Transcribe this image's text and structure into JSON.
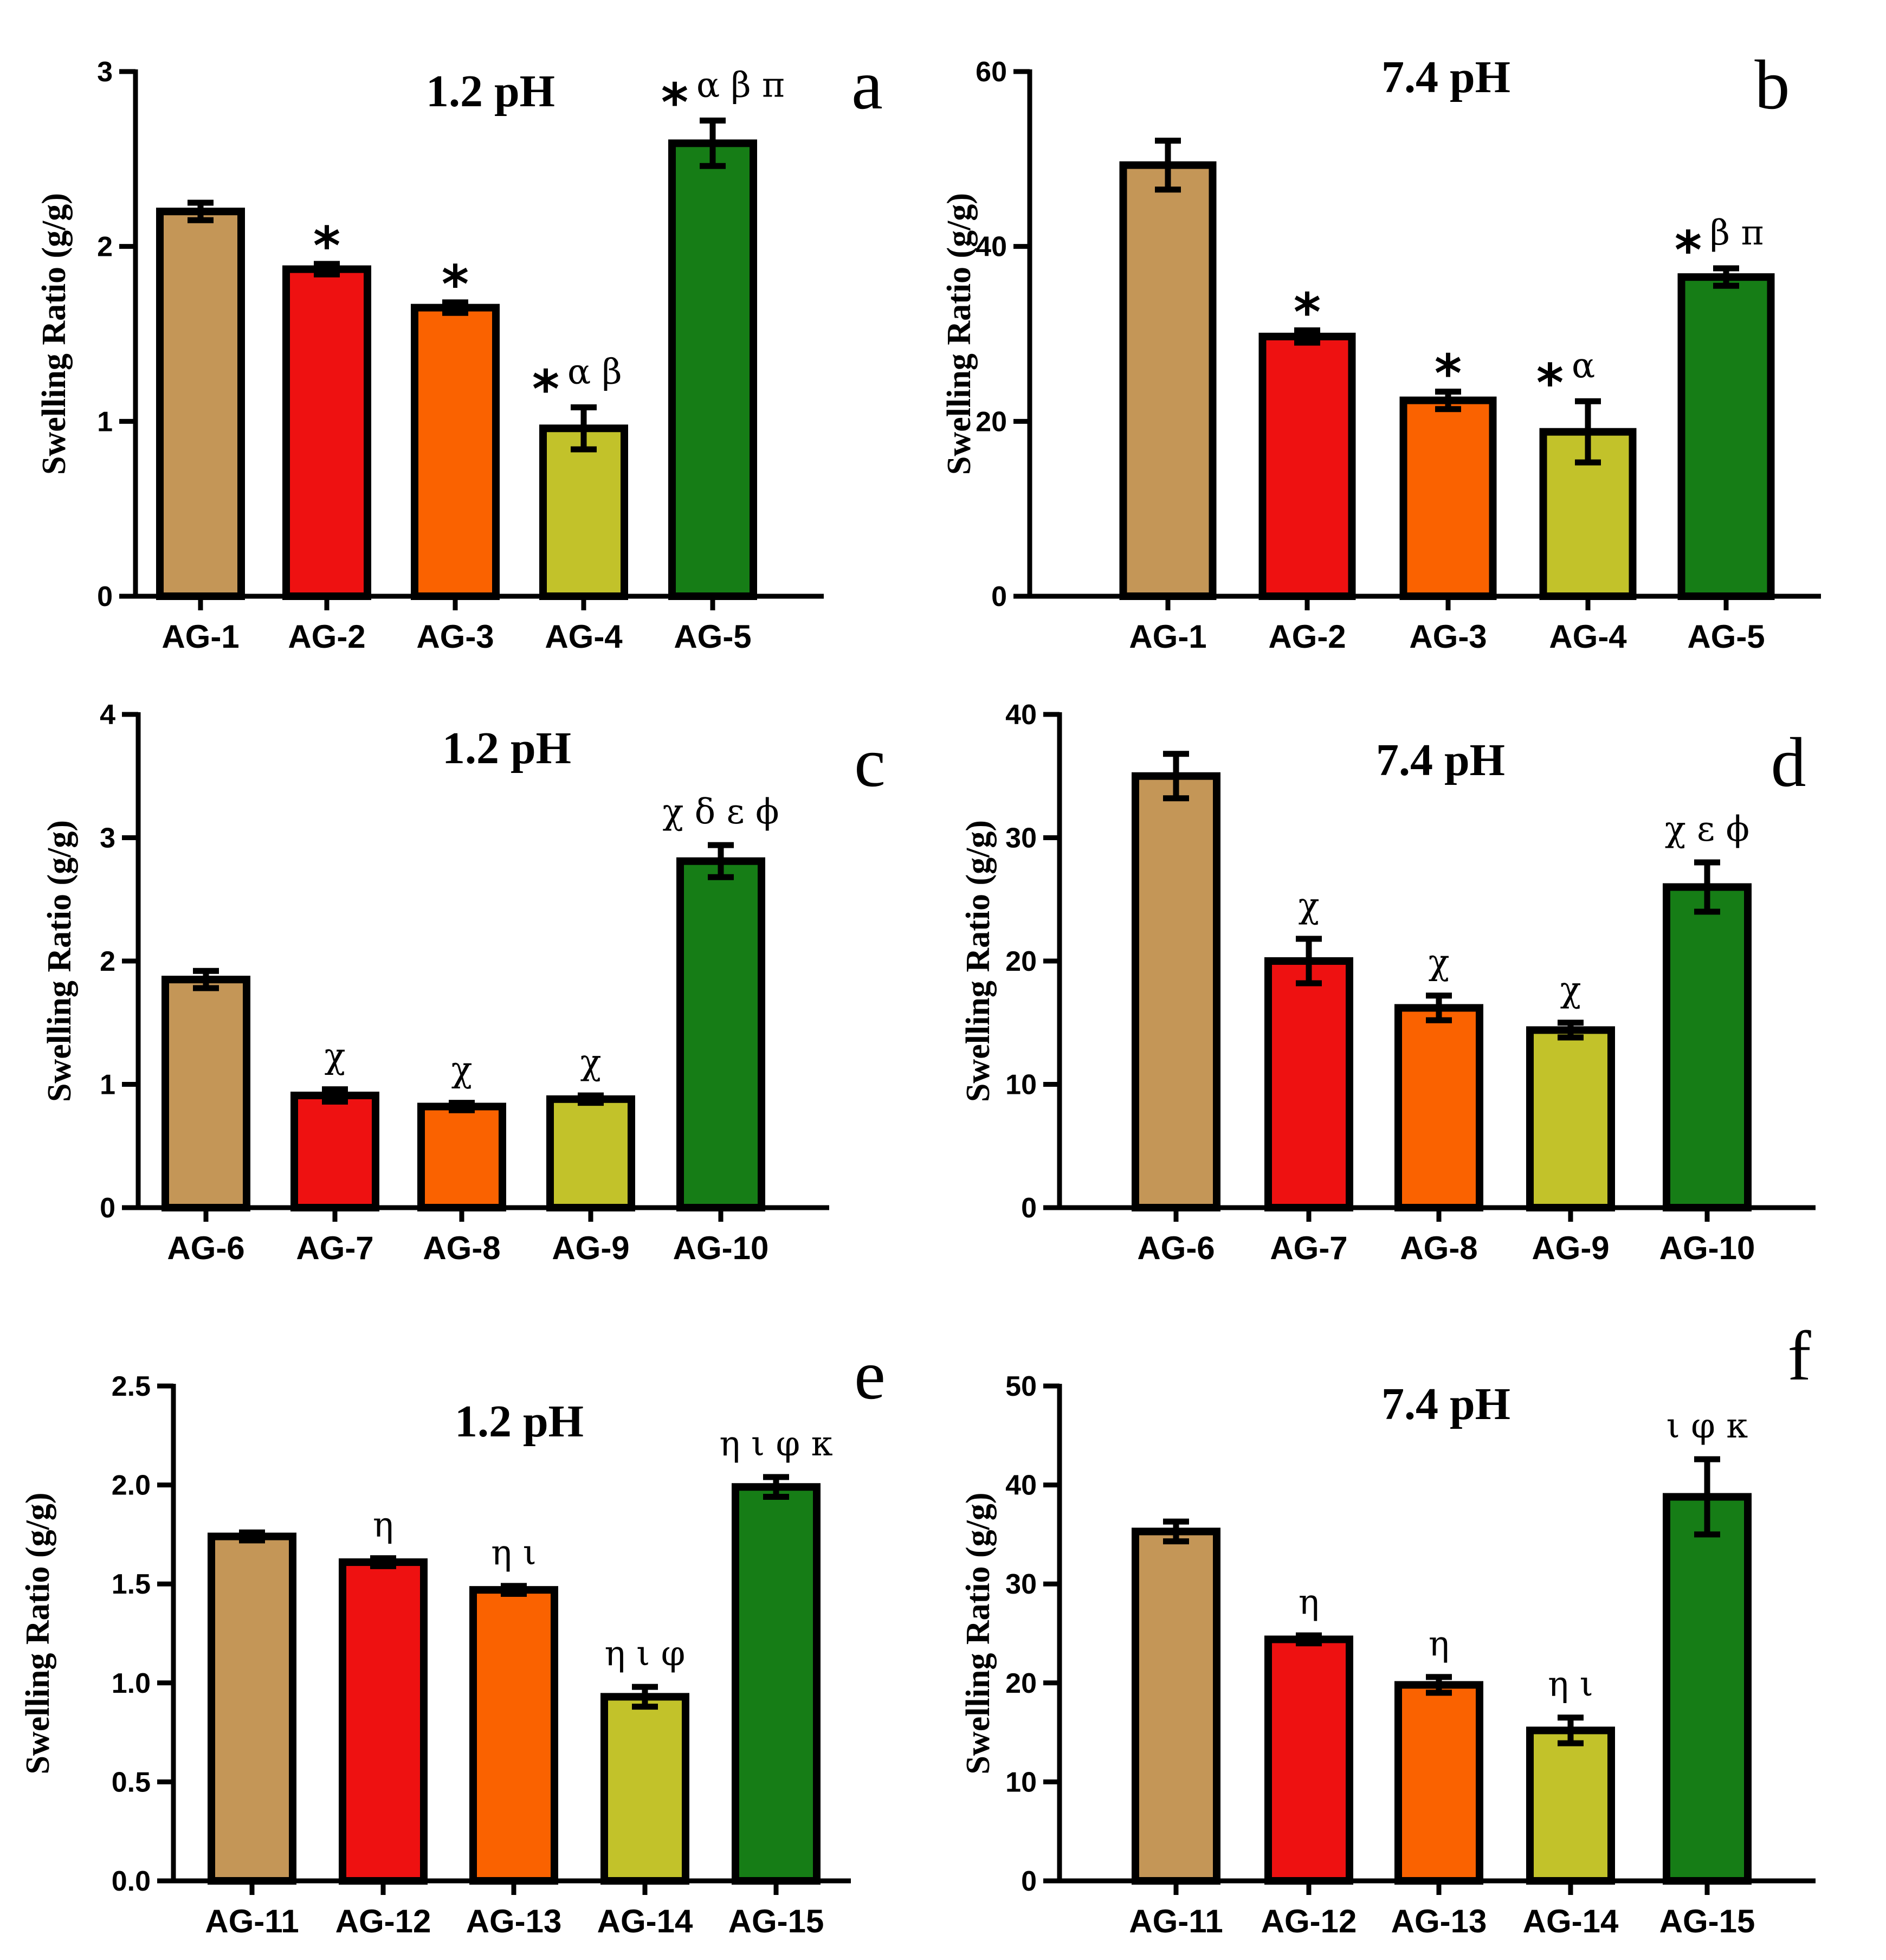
{
  "colors": {
    "bar_1": "#c49657",
    "bar_2": "#ee1111",
    "bar_3": "#fa6200",
    "bar_4": "#c2c22a",
    "bar_5": "#167d16"
  },
  "chart_data": [
    {
      "panel": "a",
      "type": "bar",
      "title": "1.2 pH",
      "ylabel": "Swelling Ratio (g/g)",
      "xlabel": "",
      "ylim": [
        0,
        3
      ],
      "yticks": [
        "0",
        "1",
        "2",
        "3"
      ],
      "categories": [
        "AG-1",
        "AG-2",
        "AG-3",
        "AG-4",
        "AG-5"
      ],
      "values": [
        2.2,
        1.87,
        1.65,
        0.96,
        2.59
      ],
      "errors": [
        0.05,
        0.03,
        0.03,
        0.12,
        0.13
      ],
      "annotations": [
        {
          "star": "",
          "text": ""
        },
        {
          "star": "*",
          "text": ""
        },
        {
          "star": "*",
          "text": ""
        },
        {
          "star": "*",
          "text": "α β"
        },
        {
          "star": "*",
          "text": "α β π"
        }
      ]
    },
    {
      "panel": "b",
      "type": "bar",
      "title": "7.4 pH",
      "ylabel": "Swelling Ratio (g/g)",
      "xlabel": "",
      "ylim": [
        0,
        60
      ],
      "yticks": [
        "0",
        "20",
        "40",
        "60"
      ],
      "categories": [
        "AG-1",
        "AG-2",
        "AG-3",
        "AG-4",
        "AG-5"
      ],
      "values": [
        49.3,
        29.7,
        22.4,
        18.8,
        36.5
      ],
      "errors": [
        2.8,
        0.7,
        1.0,
        3.5,
        1.0
      ],
      "annotations": [
        {
          "star": "",
          "text": ""
        },
        {
          "star": "*",
          "text": ""
        },
        {
          "star": "*",
          "text": ""
        },
        {
          "star": "*",
          "text": "α"
        },
        {
          "star": "*",
          "text": "β π"
        }
      ]
    },
    {
      "panel": "c",
      "type": "bar",
      "title": "1.2 pH",
      "ylabel": "Swelling Ratio (g/g)",
      "xlabel": "",
      "ylim": [
        0,
        4
      ],
      "yticks": [
        "0",
        "1",
        "2",
        "3",
        "4"
      ],
      "categories": [
        "AG-6",
        "AG-7",
        "AG-8",
        "AG-9",
        "AG-10"
      ],
      "values": [
        1.85,
        0.91,
        0.82,
        0.88,
        2.81
      ],
      "errors": [
        0.07,
        0.05,
        0.03,
        0.03,
        0.13
      ],
      "annotations": [
        {
          "star": "",
          "text": ""
        },
        {
          "star": "",
          "text": "χ"
        },
        {
          "star": "",
          "text": "χ"
        },
        {
          "star": "",
          "text": "χ"
        },
        {
          "star": "",
          "text": "χ δ ε ϕ"
        }
      ]
    },
    {
      "panel": "d",
      "type": "bar",
      "title": "7.4 pH",
      "ylabel": "Swelling Ratio (g/g)",
      "xlabel": "",
      "ylim": [
        0,
        40
      ],
      "yticks": [
        "0",
        "10",
        "20",
        "30",
        "40"
      ],
      "categories": [
        "AG-6",
        "AG-7",
        "AG-8",
        "AG-9",
        "AG-10"
      ],
      "values": [
        35.0,
        20.0,
        16.2,
        14.4,
        26.0
      ],
      "errors": [
        1.8,
        1.8,
        1.0,
        0.6,
        2.0
      ],
      "annotations": [
        {
          "star": "",
          "text": ""
        },
        {
          "star": "",
          "text": "χ"
        },
        {
          "star": "",
          "text": "χ"
        },
        {
          "star": "",
          "text": "χ"
        },
        {
          "star": "",
          "text": "χ ε ϕ"
        }
      ]
    },
    {
      "panel": "e",
      "type": "bar",
      "title": "1.2 pH",
      "ylabel": "Swelling Ratio (g/g)",
      "xlabel": "",
      "ylim": [
        0,
        2.5
      ],
      "yticks": [
        "0.0",
        "0.5",
        "1.0",
        "1.5",
        "2.0",
        "2.5"
      ],
      "categories": [
        "AG-11",
        "AG-12",
        "AG-13",
        "AG-14",
        "AG-15"
      ],
      "values": [
        1.74,
        1.61,
        1.47,
        0.93,
        1.99
      ],
      "errors": [
        0.02,
        0.02,
        0.02,
        0.05,
        0.05
      ],
      "annotations": [
        {
          "star": "",
          "text": ""
        },
        {
          "star": "",
          "text": "η"
        },
        {
          "star": "",
          "text": "η ι"
        },
        {
          "star": "",
          "text": "η ι φ"
        },
        {
          "star": "",
          "text": "η ι φ κ"
        }
      ]
    },
    {
      "panel": "f",
      "type": "bar",
      "title": "7.4 pH",
      "ylabel": "Swelling Ratio (g/g)",
      "xlabel": "",
      "ylim": [
        0,
        50
      ],
      "yticks": [
        "0",
        "10",
        "20",
        "30",
        "40",
        "50"
      ],
      "categories": [
        "AG-11",
        "AG-12",
        "AG-13",
        "AG-14",
        "AG-15"
      ],
      "values": [
        35.3,
        24.4,
        19.8,
        15.2,
        38.8
      ],
      "errors": [
        1.0,
        0.4,
        0.8,
        1.3,
        3.8
      ],
      "annotations": [
        {
          "star": "",
          "text": ""
        },
        {
          "star": "",
          "text": "η"
        },
        {
          "star": "",
          "text": "η"
        },
        {
          "star": "",
          "text": "η ι"
        },
        {
          "star": "",
          "text": "ι φ κ"
        }
      ]
    }
  ]
}
